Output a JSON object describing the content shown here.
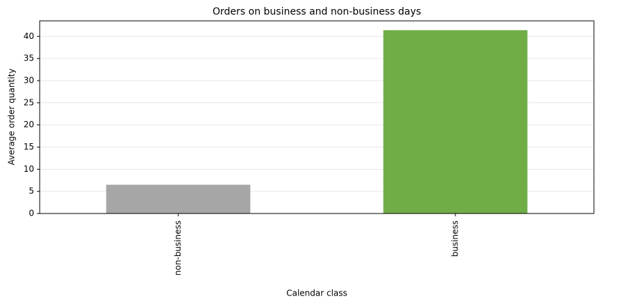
{
  "chart_data": {
    "type": "bar",
    "title": "Orders on business and non-business days",
    "x_label": "Calendar class",
    "y_label": "Average order quantity",
    "categories": [
      "non-business",
      "business"
    ],
    "values": [
      6.5,
      41.4
    ],
    "colors": [
      "#a6a6a6",
      "#70ad47"
    ],
    "ylim": [
      0,
      43.5
    ],
    "yticks": [
      0,
      5,
      10,
      15,
      20,
      25,
      30,
      35,
      40
    ],
    "grid": true
  }
}
